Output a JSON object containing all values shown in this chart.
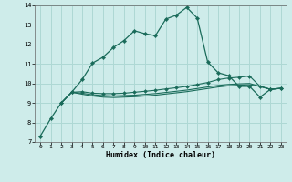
{
  "title": "",
  "xlabel": "Humidex (Indice chaleur)",
  "ylabel": "",
  "bg_color": "#ceecea",
  "grid_color": "#aed8d4",
  "line_color": "#1a6b5a",
  "xlim": [
    -0.5,
    23.5
  ],
  "ylim": [
    7,
    14
  ],
  "yticks": [
    7,
    8,
    9,
    10,
    11,
    12,
    13,
    14
  ],
  "xticks": [
    0,
    1,
    2,
    3,
    4,
    5,
    6,
    7,
    8,
    9,
    10,
    11,
    12,
    13,
    14,
    15,
    16,
    17,
    18,
    19,
    20,
    21,
    22,
    23
  ],
  "line1_x": [
    0,
    1,
    2,
    3,
    4,
    5,
    6,
    7,
    8,
    9,
    10,
    11,
    12,
    13,
    14,
    15,
    16,
    17,
    18,
    19,
    20,
    21,
    22,
    23
  ],
  "line1_y": [
    7.3,
    8.2,
    9.0,
    9.55,
    10.2,
    11.05,
    11.35,
    11.85,
    12.2,
    12.7,
    12.55,
    12.45,
    13.3,
    13.5,
    13.9,
    13.35,
    11.1,
    10.55,
    10.4,
    9.85,
    9.85,
    9.3,
    9.7,
    9.75
  ],
  "line2_x": [
    2,
    3,
    4,
    5,
    6,
    7,
    8,
    9,
    10,
    11,
    12,
    13,
    14,
    15,
    16,
    17,
    18,
    19,
    20,
    21,
    22,
    23
  ],
  "line2_y": [
    9.0,
    9.55,
    9.58,
    9.5,
    9.48,
    9.48,
    9.5,
    9.55,
    9.6,
    9.65,
    9.72,
    9.78,
    9.85,
    9.95,
    10.05,
    10.2,
    10.28,
    10.32,
    10.38,
    9.85,
    9.7,
    9.75
  ],
  "line3_x": [
    2,
    3,
    4,
    5,
    6,
    7,
    8,
    9,
    10,
    11,
    12,
    13,
    14,
    15,
    16,
    17,
    18,
    19,
    20,
    21,
    22,
    23
  ],
  "line3_y": [
    9.0,
    9.55,
    9.5,
    9.42,
    9.38,
    9.36,
    9.38,
    9.4,
    9.44,
    9.48,
    9.54,
    9.6,
    9.66,
    9.74,
    9.82,
    9.9,
    9.95,
    9.98,
    10.0,
    9.85,
    9.7,
    9.75
  ],
  "line4_x": [
    2,
    3,
    4,
    5,
    6,
    7,
    8,
    9,
    10,
    11,
    12,
    13,
    14,
    15,
    16,
    17,
    18,
    19,
    20,
    21,
    22,
    23
  ],
  "line4_y": [
    9.0,
    9.55,
    9.45,
    9.36,
    9.3,
    9.28,
    9.3,
    9.32,
    9.36,
    9.4,
    9.46,
    9.52,
    9.58,
    9.66,
    9.74,
    9.82,
    9.88,
    9.91,
    9.93,
    9.85,
    9.7,
    9.75
  ]
}
